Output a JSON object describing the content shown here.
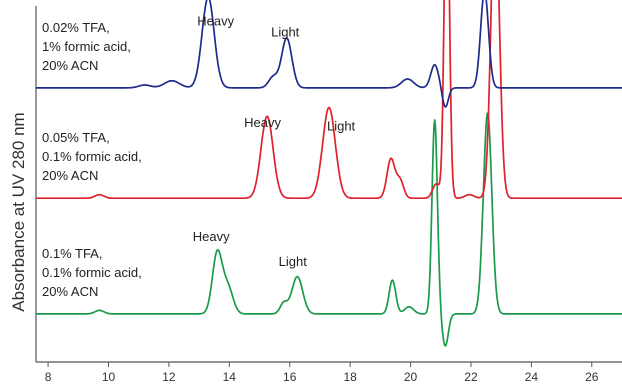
{
  "chart_data": {
    "type": "line",
    "xlabel": "",
    "ylabel": "Absorbance at UV 280 nm",
    "xlim": [
      7.6,
      27
    ],
    "x_ticks": [
      8,
      10,
      12,
      14,
      16,
      18,
      20,
      22,
      24,
      26
    ],
    "grid": false,
    "series": [
      {
        "name": "0.1% TFA, 0.1% formic acid, 20% ACN",
        "label_lines": [
          "0.1% TFA,",
          "0.1% formic acid,",
          "20% ACN"
        ],
        "color": "#1a9a4a",
        "baseline": 0.135,
        "peaks": [
          {
            "t": 9.7,
            "h": 0.01,
            "w": 0.15
          },
          {
            "t": 13.6,
            "h": 0.17,
            "w": 0.16
          },
          {
            "t": 13.95,
            "h": 0.075,
            "w": 0.17
          },
          {
            "t": 15.8,
            "h": 0.03,
            "w": 0.12
          },
          {
            "t": 16.25,
            "h": 0.105,
            "w": 0.18
          },
          {
            "t": 19.4,
            "h": 0.095,
            "w": 0.11
          },
          {
            "t": 19.95,
            "h": 0.02,
            "w": 0.15
          },
          {
            "t": 20.8,
            "h": 0.545,
            "w": 0.09
          },
          {
            "t": 21.15,
            "h": -0.09,
            "w": 0.1
          },
          {
            "t": 22.55,
            "h": 0.565,
            "w": 0.14
          }
        ],
        "annotations": [
          {
            "text": "Heavy",
            "x": 13.4,
            "y": 0.34
          },
          {
            "text": "Light",
            "x": 16.1,
            "y": 0.27
          }
        ]
      },
      {
        "name": "0.05% TFA, 0.1% formic acid, 20% ACN",
        "label_lines": [
          "0.05% TFA,",
          "0.1% formic acid,",
          "20% ACN"
        ],
        "color": "#e0202a",
        "baseline": 0.46,
        "peaks": [
          {
            "t": 9.7,
            "h": 0.01,
            "w": 0.15
          },
          {
            "t": 15.25,
            "h": 0.23,
            "w": 0.2
          },
          {
            "t": 17.3,
            "h": 0.255,
            "w": 0.21
          },
          {
            "t": 19.35,
            "h": 0.11,
            "w": 0.13
          },
          {
            "t": 19.65,
            "h": 0.05,
            "w": 0.12
          },
          {
            "t": 20.85,
            "h": 0.04,
            "w": 0.12
          },
          {
            "t": 21.2,
            "h": 0.965,
            "w": 0.085
          },
          {
            "t": 21.95,
            "h": 0.01,
            "w": 0.15
          },
          {
            "t": 22.8,
            "h": 0.83,
            "w": 0.14
          }
        ],
        "annotations": [
          {
            "text": "Heavy",
            "x": 15.1,
            "y": 0.66
          },
          {
            "text": "Light",
            "x": 17.7,
            "y": 0.65
          }
        ]
      },
      {
        "name": "0.02% TFA, 1% formic acid, 20% ACN",
        "label_lines": [
          "0.02% TFA,",
          "1% formic acid,",
          "20% ACN"
        ],
        "color": "#1e2a8c",
        "baseline": 0.77,
        "peaks": [
          {
            "t": 11.2,
            "h": 0.008,
            "w": 0.2
          },
          {
            "t": 12.1,
            "h": 0.02,
            "w": 0.25
          },
          {
            "t": 13.3,
            "h": 0.255,
            "w": 0.2
          },
          {
            "t": 15.45,
            "h": 0.03,
            "w": 0.15
          },
          {
            "t": 15.9,
            "h": 0.14,
            "w": 0.17
          },
          {
            "t": 19.9,
            "h": 0.025,
            "w": 0.2
          },
          {
            "t": 20.8,
            "h": 0.065,
            "w": 0.13
          },
          {
            "t": 21.15,
            "h": -0.055,
            "w": 0.1
          },
          {
            "t": 22.45,
            "h": 0.27,
            "w": 0.13
          }
        ],
        "annotations": [
          {
            "text": "Heavy",
            "x": 13.55,
            "y": 0.945
          },
          {
            "text": "Light",
            "x": 15.85,
            "y": 0.915
          }
        ]
      }
    ]
  }
}
